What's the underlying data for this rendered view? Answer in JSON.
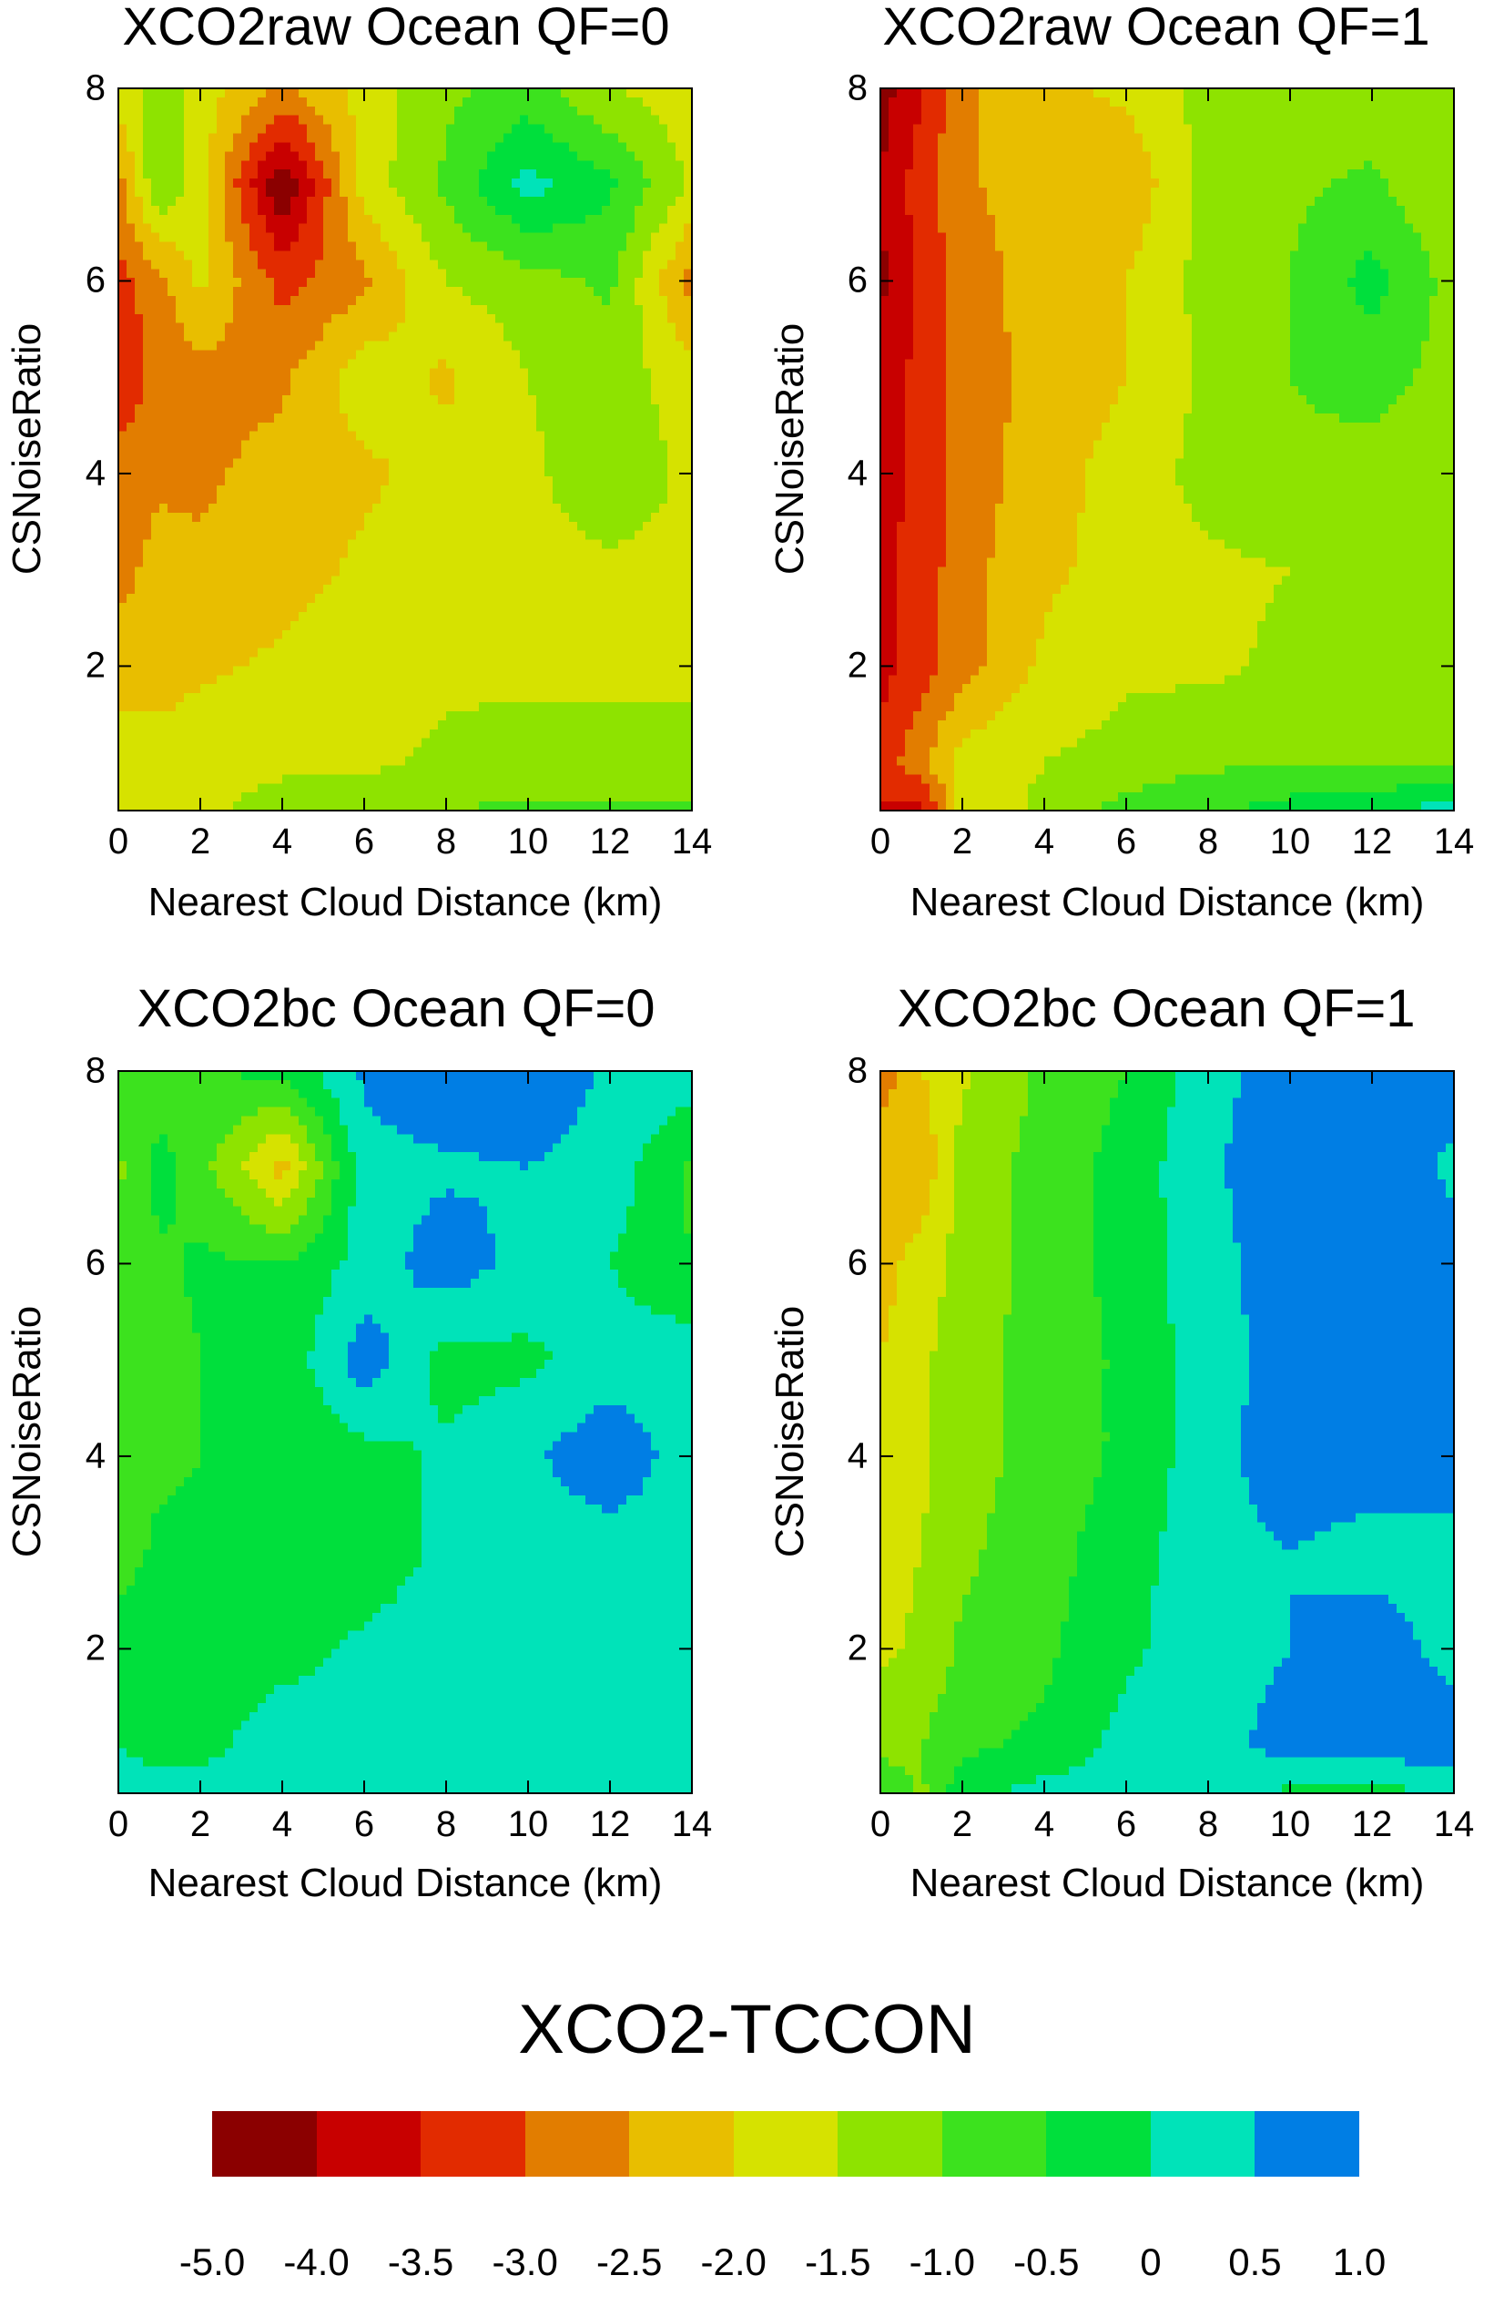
{
  "chart_data": [
    {
      "type": "heatmap",
      "title": "XCO2raw Ocean QF=0",
      "xlabel": "Nearest Cloud Distance (km)",
      "ylabel": "CSNoiseRatio",
      "xlim": [
        0,
        14
      ],
      "ylim": [
        0.5,
        8
      ],
      "x_ticks": [
        "0",
        "2",
        "4",
        "6",
        "8",
        "10",
        "12",
        "14"
      ],
      "y_ticks": [
        "2",
        "4",
        "6",
        "8"
      ],
      "x": [
        0,
        1,
        2,
        4,
        6,
        8,
        10,
        12,
        14
      ],
      "y": [
        0.5,
        1,
        2,
        3,
        4,
        5,
        6,
        7,
        8
      ],
      "z": [
        [
          -1.6,
          -1.6,
          -1.6,
          -1.3,
          -1.2,
          -1.0,
          -0.9,
          -0.9,
          -0.9
        ],
        [
          -1.8,
          -1.8,
          -1.7,
          -1.6,
          -1.6,
          -1.4,
          -1.3,
          -1.3,
          -1.3
        ],
        [
          -2.2,
          -2.2,
          -2.1,
          -1.9,
          -1.7,
          -1.6,
          -1.6,
          -1.6,
          -1.6
        ],
        [
          -2.7,
          -2.3,
          -2.4,
          -2.2,
          -1.9,
          -1.6,
          -1.6,
          -1.6,
          -1.6
        ],
        [
          -2.8,
          -2.6,
          -2.6,
          -2.3,
          -2.1,
          -1.8,
          -1.6,
          -1.2,
          -1.6
        ],
        [
          -3.4,
          -2.8,
          -2.7,
          -2.6,
          -1.7,
          -2.1,
          -1.5,
          -1.2,
          -1.8
        ],
        [
          -3.2,
          -2.7,
          -1.9,
          -3.2,
          -2.6,
          -1.5,
          -1.2,
          -0.9,
          -2.7
        ],
        [
          -2.7,
          -1.0,
          -1.8,
          -4.5,
          -1.8,
          -0.9,
          0.2,
          -0.4,
          -1.6
        ],
        [
          -1.8,
          -1.2,
          -1.7,
          -2.6,
          -1.8,
          -1.1,
          -0.8,
          -1.5,
          -1.8
        ]
      ]
    },
    {
      "type": "heatmap",
      "title": "XCO2raw Ocean QF=1",
      "xlabel": "Nearest Cloud Distance (km)",
      "ylabel": "CSNoiseRatio",
      "xlim": [
        0,
        14
      ],
      "ylim": [
        0.5,
        8
      ],
      "x_ticks": [
        "0",
        "2",
        "4",
        "6",
        "8",
        "10",
        "12",
        "14"
      ],
      "y_ticks": [
        "2",
        "4",
        "6",
        "8"
      ],
      "x": [
        0,
        1,
        2,
        4,
        6,
        8,
        10,
        12,
        14
      ],
      "y": [
        0.5,
        1,
        2,
        3,
        4,
        5,
        6,
        7,
        8
      ],
      "z": [
        [
          -3.5,
          -3.8,
          -1.8,
          -1.4,
          -0.8,
          -0.6,
          -0.3,
          -0.2,
          0.3
        ],
        [
          -3.3,
          -2.6,
          -1.8,
          -1.5,
          -1.3,
          -1.1,
          -1.0,
          -1.0,
          -1.0
        ],
        [
          -3.7,
          -3.2,
          -2.7,
          -1.9,
          -1.6,
          -1.6,
          -1.4,
          -1.2,
          -1.2
        ],
        [
          -3.6,
          -3.3,
          -2.7,
          -2.1,
          -1.8,
          -1.6,
          -1.5,
          -1.4,
          -1.4
        ],
        [
          -3.8,
          -3.3,
          -2.8,
          -2.2,
          -1.8,
          -1.3,
          -1.1,
          -1.2,
          -1.3
        ],
        [
          -3.9,
          -3.3,
          -2.8,
          -2.3,
          -2.0,
          -1.4,
          -1.0,
          -0.8,
          -1.2
        ],
        [
          -4.1,
          -3.4,
          -2.8,
          -2.2,
          -2.0,
          -1.3,
          -1.0,
          -0.3,
          -1.2
        ],
        [
          -4.0,
          -3.2,
          -2.6,
          -2.2,
          -2.4,
          -1.3,
          -1.1,
          -0.9,
          -1.5
        ],
        [
          -4.2,
          -3.6,
          -2.6,
          -2.1,
          -1.9,
          -1.3,
          -1.3,
          -1.3,
          -1.3
        ]
      ]
    },
    {
      "type": "heatmap",
      "title": "XCO2bc Ocean QF=0",
      "xlabel": "Nearest Cloud Distance (km)",
      "ylabel": "CSNoiseRatio",
      "xlim": [
        0,
        14
      ],
      "ylim": [
        0.5,
        8
      ],
      "x_ticks": [
        "0",
        "2",
        "4",
        "6",
        "8",
        "10",
        "12",
        "14"
      ],
      "y_ticks": [
        "2",
        "4",
        "6",
        "8"
      ],
      "x": [
        0,
        1,
        2,
        4,
        6,
        8,
        10,
        12,
        14
      ],
      "y": [
        0.5,
        1,
        2,
        3,
        4,
        5,
        6,
        7,
        8
      ],
      "z": [
        [
          0.3,
          0.3,
          0.3,
          0.3,
          0.3,
          0.3,
          0.3,
          0.3,
          0.3
        ],
        [
          0.0,
          -0.3,
          -0.2,
          0.3,
          0.3,
          0.3,
          0.3,
          0.3,
          0.3
        ],
        [
          -0.3,
          -0.3,
          -0.2,
          -0.2,
          0.1,
          0.3,
          0.3,
          0.3,
          0.3
        ],
        [
          -0.7,
          -0.4,
          -0.4,
          -0.3,
          -0.3,
          0.1,
          0.2,
          0.2,
          0.3
        ],
        [
          -0.7,
          -0.6,
          -0.5,
          -0.4,
          -0.2,
          0.1,
          0.4,
          0.9,
          0.2
        ],
        [
          -0.9,
          -0.8,
          -0.5,
          -0.4,
          0.8,
          -0.2,
          -0.1,
          0.2,
          0.3
        ],
        [
          -0.9,
          -0.6,
          -0.4,
          -0.5,
          0.2,
          0.8,
          0.3,
          0.0,
          -0.5
        ],
        [
          -1.1,
          -0.3,
          -0.8,
          -2.2,
          0.3,
          0.4,
          0.5,
          0.3,
          -0.6
        ],
        [
          -0.8,
          -0.8,
          -0.5,
          -0.4,
          0.6,
          1.0,
          0.9,
          0.4,
          0.3
        ]
      ]
    },
    {
      "type": "heatmap",
      "title": "XCO2bc Ocean QF=1",
      "xlabel": "Nearest Cloud Distance (km)",
      "ylabel": "CSNoiseRatio",
      "xlim": [
        0,
        14
      ],
      "ylim": [
        0.5,
        8
      ],
      "x_ticks": [
        "0",
        "2",
        "4",
        "6",
        "8",
        "10",
        "12",
        "14"
      ],
      "y_ticks": [
        "2",
        "4",
        "6",
        "8"
      ],
      "x": [
        0,
        1,
        2,
        4,
        6,
        8,
        10,
        12,
        14
      ],
      "y": [
        0.5,
        1,
        2,
        3,
        4,
        5,
        6,
        7,
        8
      ],
      "z": [
        [
          -0.6,
          -1.1,
          -0.2,
          0.2,
          0.2,
          0.2,
          -0.1,
          -0.2,
          0.1
        ],
        [
          -1.2,
          -1.0,
          -0.6,
          -0.4,
          0.2,
          0.3,
          0.7,
          0.8,
          0.8
        ],
        [
          -1.6,
          -1.4,
          -0.9,
          -0.6,
          -0.1,
          0.3,
          0.5,
          0.8,
          0.3
        ],
        [
          -1.7,
          -1.5,
          -1.1,
          -0.7,
          -0.2,
          0.3,
          0.5,
          0.3,
          0.3
        ],
        [
          -1.8,
          -1.6,
          -1.2,
          -0.8,
          -0.4,
          0.3,
          0.8,
          0.8,
          0.8
        ],
        [
          -2.0,
          -1.6,
          -1.2,
          -0.8,
          -0.4,
          0.3,
          0.7,
          0.9,
          0.8
        ],
        [
          -2.2,
          -1.8,
          -1.3,
          -0.8,
          -0.3,
          0.3,
          0.8,
          0.8,
          0.7
        ],
        [
          -2.1,
          -2.4,
          -1.3,
          -0.8,
          -0.3,
          0.4,
          0.9,
          0.8,
          0.4
        ],
        [
          -2.8,
          -2.0,
          -1.6,
          -0.9,
          -0.5,
          0.3,
          0.8,
          0.8,
          0.7
        ]
      ]
    }
  ],
  "colorbar": {
    "title": "XCO2-TCCON",
    "levels": [
      -5.0,
      -4.0,
      -3.5,
      -3.0,
      -2.5,
      -2.0,
      -1.5,
      -1.0,
      -0.5,
      0,
      0.5,
      1.0
    ],
    "tick_labels": [
      "-5.0",
      "-4.0",
      "-3.5",
      "-3.0",
      "-2.5",
      "-2.0",
      "-1.5",
      "-1.0",
      "-0.5",
      "0",
      "0.5",
      "1.0"
    ],
    "colors": [
      "#8b0000",
      "#c80000",
      "#e22b00",
      "#e27d00",
      "#e8be00",
      "#d6e200",
      "#8ee300",
      "#3ce21e",
      "#00df3c",
      "#00e3b9",
      "#007ee4"
    ]
  }
}
